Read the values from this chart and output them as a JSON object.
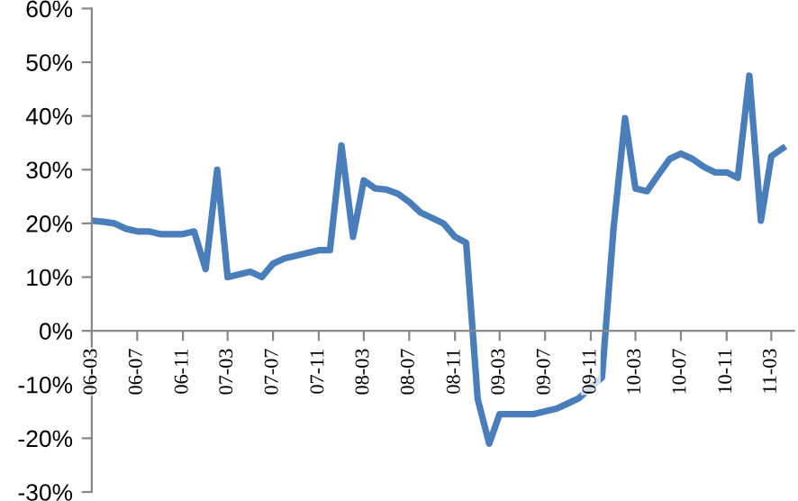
{
  "chart_data": {
    "type": "line",
    "x": [
      "2006-03",
      "2006-04",
      "2006-05",
      "2006-06",
      "2006-07",
      "2006-08",
      "2006-09",
      "2006-10",
      "2006-11",
      "2006-12",
      "2007-01",
      "2007-02",
      "2007-03",
      "2007-04",
      "2007-05",
      "2007-06",
      "2007-07",
      "2007-08",
      "2007-09",
      "2007-10",
      "2007-11",
      "2007-12",
      "2008-01",
      "2008-02",
      "2008-03",
      "2008-04",
      "2008-05",
      "2008-06",
      "2008-07",
      "2008-08",
      "2008-09",
      "2008-10",
      "2008-11",
      "2008-12",
      "2009-01",
      "2009-02",
      "2009-03",
      "2009-04",
      "2009-05",
      "2009-06",
      "2009-07",
      "2009-08",
      "2009-09",
      "2009-10",
      "2009-11",
      "2009-12",
      "2010-01",
      "2010-02",
      "2010-03",
      "2010-04",
      "2010-05",
      "2010-06",
      "2010-07",
      "2010-08",
      "2010-09",
      "2010-10",
      "2010-11",
      "2010-12",
      "2011-01",
      "2011-02",
      "2011-03",
      "2011-04"
    ],
    "series": [
      {
        "color": "#4a7ebb",
        "values": [
          20.5,
          20.3,
          20,
          19,
          18.5,
          18.5,
          18,
          18,
          18,
          18.5,
          11.5,
          30,
          10,
          10.5,
          11,
          10,
          12.5,
          13.5,
          14,
          14.5,
          15,
          15,
          34.5,
          17.5,
          28,
          26.5,
          26.3,
          25.5,
          24,
          22,
          21,
          20,
          17.5,
          16.4,
          -12.7,
          -21,
          -15.5,
          -15.5,
          -15.5,
          -15.5,
          -15,
          -14.5,
          -13.5,
          -12.5,
          -10.5,
          -8.7,
          19,
          39.6,
          26.5,
          26,
          29,
          32,
          33,
          32,
          30.5,
          29.5,
          29.5,
          28.5,
          47.5,
          20.5,
          32.5,
          34
        ]
      }
    ],
    "xlim": [
      "2006-03",
      "2011-05"
    ],
    "xticks": [
      {
        "value": "2006-03",
        "label": "06-03"
      },
      {
        "value": "2006-07",
        "label": "06-07"
      },
      {
        "value": "2006-11",
        "label": "06-11"
      },
      {
        "value": "2007-03",
        "label": "07-03"
      },
      {
        "value": "2007-07",
        "label": "07-07"
      },
      {
        "value": "2007-11",
        "label": "07-11"
      },
      {
        "value": "2008-03",
        "label": "08-03"
      },
      {
        "value": "2008-07",
        "label": "08-07"
      },
      {
        "value": "2008-11",
        "label": "08-11"
      },
      {
        "value": "2009-03",
        "label": "09-03"
      },
      {
        "value": "2009-07",
        "label": "09-07"
      },
      {
        "value": "2009-11",
        "label": "09-11"
      },
      {
        "value": "2010-03",
        "label": "10-03"
      },
      {
        "value": "2010-07",
        "label": "10-07"
      },
      {
        "value": "2010-11",
        "label": "10-11"
      },
      {
        "value": "2011-03",
        "label": "11-03"
      }
    ],
    "ylim": [
      -30,
      60
    ],
    "yticks": [
      {
        "value": -30,
        "label": "-30%"
      },
      {
        "value": -20,
        "label": "-20%"
      },
      {
        "value": -10,
        "label": "-10%"
      },
      {
        "value": 0,
        "label": "0%"
      },
      {
        "value": 10,
        "label": "10%"
      },
      {
        "value": 20,
        "label": "20%"
      },
      {
        "value": 30,
        "label": "30%"
      },
      {
        "value": 40,
        "label": "40%"
      },
      {
        "value": 50,
        "label": "50%"
      },
      {
        "value": 60,
        "label": "60%"
      }
    ],
    "grid": false,
    "legend": false,
    "marker": "none",
    "line_style": "solid"
  }
}
